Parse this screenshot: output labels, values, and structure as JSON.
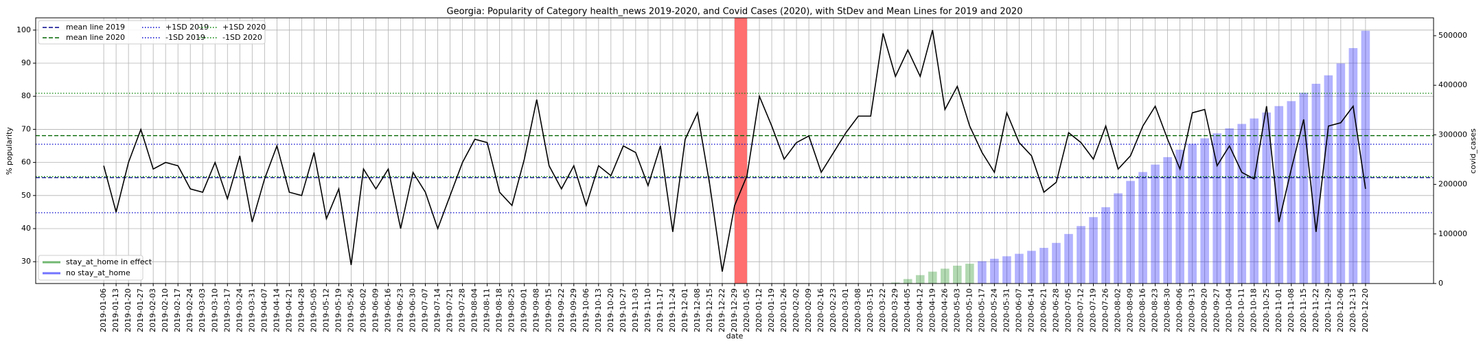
{
  "chart_data": {
    "type": "line",
    "title": "Georgia: Popularity of Category health_news 2019-2020, and Covid Cases (2020), with StDev and Mean Lines for 2019 and 2020",
    "x_label": "date",
    "y_label": "% popularity",
    "y2_label": "covid_cases",
    "categories": [
      "2019-01-06",
      "2019-01-13",
      "2019-01-20",
      "2019-01-27",
      "2019-02-03",
      "2019-02-10",
      "2019-02-17",
      "2019-02-24",
      "2019-03-03",
      "2019-03-10",
      "2019-03-17",
      "2019-03-24",
      "2019-03-31",
      "2019-04-07",
      "2019-04-14",
      "2019-04-21",
      "2019-04-28",
      "2019-05-05",
      "2019-05-12",
      "2019-05-19",
      "2019-05-26",
      "2019-06-02",
      "2019-06-09",
      "2019-06-16",
      "2019-06-23",
      "2019-06-30",
      "2019-07-07",
      "2019-07-14",
      "2019-07-21",
      "2019-07-28",
      "2019-08-04",
      "2019-08-11",
      "2019-08-18",
      "2019-08-25",
      "2019-09-01",
      "2019-09-08",
      "2019-09-15",
      "2019-09-22",
      "2019-09-29",
      "2019-10-06",
      "2019-10-13",
      "2019-10-20",
      "2019-10-27",
      "2019-11-03",
      "2019-11-10",
      "2019-11-17",
      "2019-11-24",
      "2019-12-01",
      "2019-12-08",
      "2019-12-15",
      "2019-12-22",
      "2019-12-29",
      "2020-01-05",
      "2020-01-12",
      "2020-01-19",
      "2020-01-26",
      "2020-02-02",
      "2020-02-09",
      "2020-02-16",
      "2020-02-23",
      "2020-03-01",
      "2020-03-08",
      "2020-03-15",
      "2020-03-22",
      "2020-03-29",
      "2020-04-05",
      "2020-04-12",
      "2020-04-19",
      "2020-04-26",
      "2020-05-03",
      "2020-05-10",
      "2020-05-17",
      "2020-05-24",
      "2020-05-31",
      "2020-06-07",
      "2020-06-14",
      "2020-06-21",
      "2020-06-28",
      "2020-07-05",
      "2020-07-12",
      "2020-07-19",
      "2020-07-26",
      "2020-08-02",
      "2020-08-09",
      "2020-08-16",
      "2020-08-23",
      "2020-08-30",
      "2020-09-06",
      "2020-09-13",
      "2020-09-20",
      "2020-09-27",
      "2020-10-04",
      "2020-10-11",
      "2020-10-18",
      "2020-10-25",
      "2020-11-01",
      "2020-11-08",
      "2020-11-15",
      "2020-11-22",
      "2020-11-29",
      "2020-12-06",
      "2020-12-13",
      "2020-12-20"
    ],
    "values": [
      59,
      45,
      60,
      70,
      58,
      60,
      59,
      52,
      51,
      60,
      49,
      62,
      42,
      55,
      65,
      51,
      50,
      63,
      43,
      52,
      29,
      58,
      52,
      58,
      40,
      57,
      51,
      40,
      50,
      60,
      67,
      66,
      51,
      47,
      61,
      79,
      59,
      52,
      59,
      47,
      59,
      56,
      65,
      63,
      53,
      65,
      39,
      67,
      75,
      53,
      27,
      47,
      56,
      80,
      71,
      61,
      66,
      68,
      57,
      63,
      69,
      74,
      74,
      99,
      86,
      94,
      86,
      100,
      76,
      83,
      71,
      63,
      57,
      75,
      66,
      62,
      51,
      54,
      69,
      66,
      61,
      71,
      58,
      62,
      71,
      77,
      67,
      58,
      75,
      76,
      59,
      65,
      57,
      55,
      77,
      42,
      58,
      73,
      39,
      71,
      72,
      77,
      52
    ],
    "color": "#000000",
    "series": [
      {
        "name": "stay_at_home in effect",
        "color": "#008000",
        "axis": "y2",
        "type": "bar",
        "values": [
          null,
          null,
          null,
          null,
          null,
          null,
          null,
          null,
          null,
          null,
          null,
          null,
          null,
          null,
          null,
          null,
          null,
          null,
          null,
          null,
          null,
          null,
          null,
          null,
          null,
          null,
          null,
          null,
          null,
          null,
          null,
          null,
          null,
          null,
          null,
          null,
          null,
          null,
          null,
          null,
          null,
          null,
          null,
          null,
          null,
          null,
          null,
          null,
          null,
          null,
          null,
          null,
          null,
          null,
          null,
          null,
          null,
          null,
          null,
          null,
          null,
          null,
          null,
          null,
          2000,
          9000,
          17000,
          24000,
          30000,
          36000,
          40000,
          null,
          null,
          null,
          null,
          null,
          null,
          null,
          null,
          null,
          null,
          null,
          null,
          null,
          null,
          null,
          null,
          null,
          null,
          null,
          null,
          null,
          null,
          null,
          null,
          null,
          null,
          null,
          null,
          null,
          null,
          null,
          null
        ]
      },
      {
        "name": "no stay_at_home",
        "color": "#0000ff",
        "axis": "y2",
        "type": "bar",
        "values": [
          null,
          null,
          null,
          null,
          null,
          null,
          null,
          null,
          null,
          null,
          null,
          null,
          null,
          null,
          null,
          null,
          null,
          null,
          null,
          null,
          null,
          null,
          null,
          null,
          null,
          null,
          null,
          null,
          null,
          null,
          null,
          null,
          null,
          null,
          null,
          null,
          null,
          null,
          null,
          null,
          null,
          null,
          null,
          null,
          null,
          null,
          null,
          null,
          null,
          null,
          null,
          null,
          null,
          null,
          null,
          null,
          null,
          null,
          null,
          null,
          null,
          null,
          null,
          null,
          null,
          null,
          null,
          null,
          null,
          null,
          null,
          45000,
          50000,
          55000,
          60000,
          66000,
          72000,
          82000,
          100000,
          116000,
          134000,
          154000,
          182000,
          207000,
          225000,
          240000,
          255000,
          270000,
          282000,
          293000,
          303000,
          313000,
          322000,
          333000,
          345000,
          358000,
          368000,
          385000,
          403000,
          420000,
          444000,
          475000,
          510000
        ]
      }
    ],
    "hlines": [
      {
        "name": "mean line 2019",
        "value": 55.4,
        "color": "#00008b",
        "style": "dashed"
      },
      {
        "name": "mean line 2020",
        "value": 68.1,
        "color": "#006400",
        "style": "dashed"
      },
      {
        "name": "+1SD 2019",
        "value": 65.5,
        "color": "#0000cd",
        "style": "dotted"
      },
      {
        "name": "-1SD 2019",
        "value": 44.8,
        "color": "#0000cd",
        "style": "dotted"
      },
      {
        "name": "+1SD 2020",
        "value": 80.9,
        "color": "#008000",
        "style": "dotted"
      },
      {
        "name": "-1SD 2020",
        "value": 55.7,
        "color": "#008000",
        "style": "dotted"
      }
    ],
    "highlight_span": {
      "from": "2019-12-29",
      "to": "2020-01-05",
      "color": "#ff6f6f"
    },
    "ylim": [
      23.4,
      103.7
    ],
    "yticks": [
      30,
      40,
      50,
      60,
      70,
      80,
      90,
      100
    ],
    "y2lim": [
      0,
      536000
    ],
    "y2ticks": [
      0,
      100000,
      200000,
      300000,
      400000,
      500000
    ],
    "grid": true
  }
}
